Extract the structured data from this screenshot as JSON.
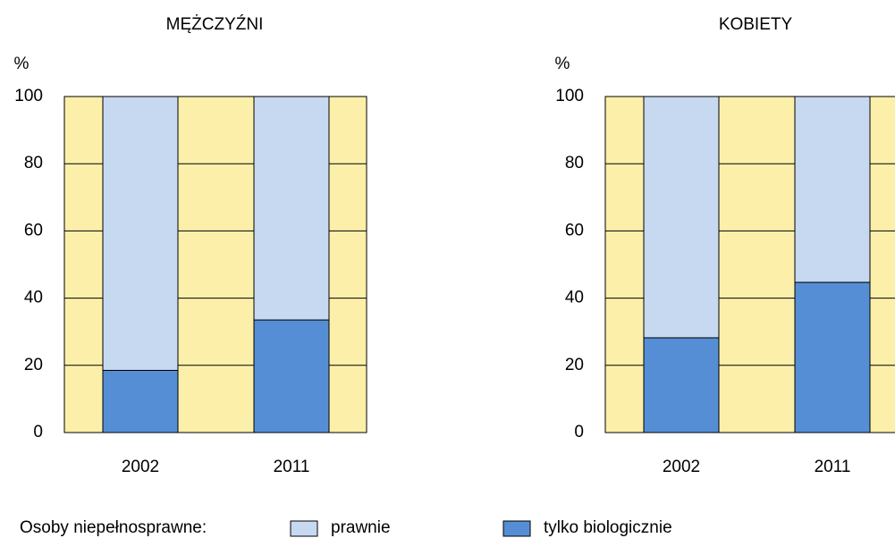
{
  "chart_data": [
    {
      "type": "stacked_bar",
      "title": "MĘŻCZYŹNI",
      "ylabel": "%",
      "categories": [
        "2002",
        "2011"
      ],
      "series": [
        {
          "name": "tylko biologicznie",
          "color": "#558ed5",
          "values": [
            18.5,
            33.5
          ]
        },
        {
          "name": "prawnie",
          "color": "#c6d9f0",
          "values": [
            81.5,
            66.5
          ]
        }
      ],
      "ylim": [
        0,
        100
      ],
      "yticks": [
        0,
        20,
        40,
        60,
        80,
        100
      ],
      "grid": true,
      "background": "#fbefaa"
    },
    {
      "type": "stacked_bar",
      "title": "KOBIETY",
      "ylabel": "%",
      "categories": [
        "2002",
        "2011"
      ],
      "series": [
        {
          "name": "tylko biologicznie",
          "color": "#558ed5",
          "values": [
            28.2,
            44.7
          ]
        },
        {
          "name": "prawnie",
          "color": "#c6d9f0",
          "values": [
            71.8,
            55.3
          ]
        }
      ],
      "ylim": [
        0,
        100
      ],
      "yticks": [
        0,
        20,
        40,
        60,
        80,
        100
      ],
      "grid": true,
      "background": "#fbefaa"
    }
  ],
  "legend": {
    "title": "Osoby niepełnosprawne:"
  }
}
